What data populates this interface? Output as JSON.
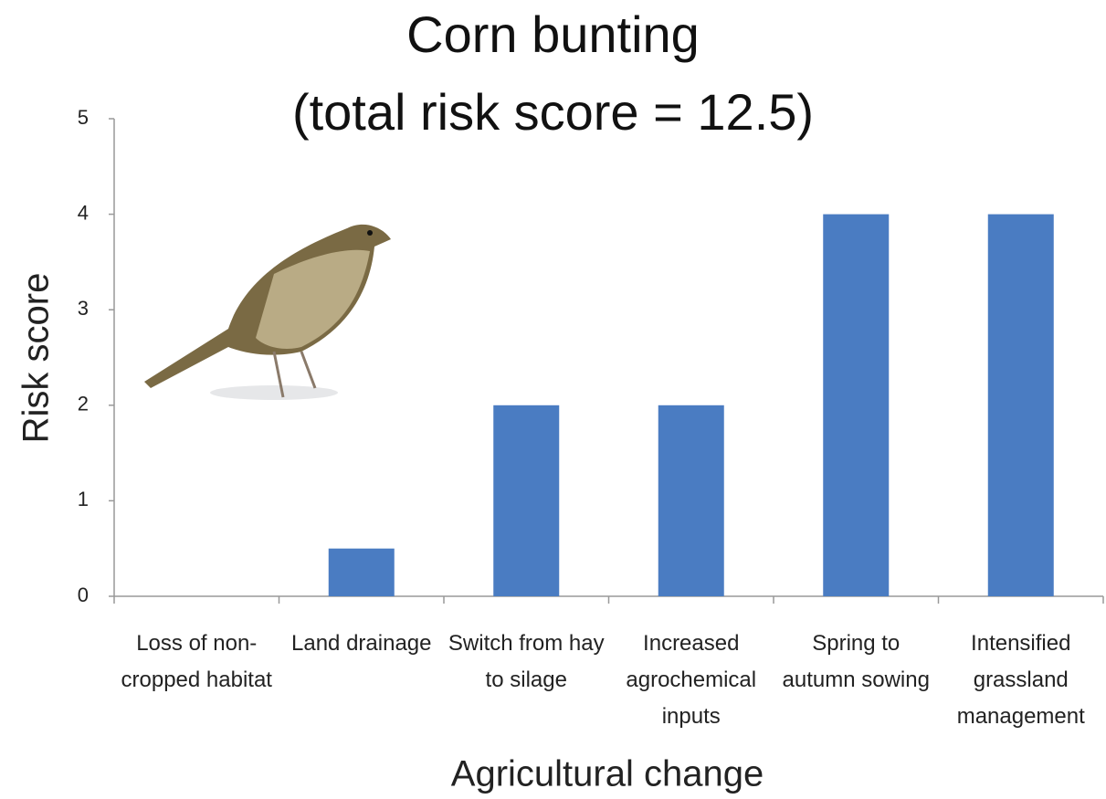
{
  "chart_data": {
    "type": "bar",
    "title": "Corn bunting",
    "subtitle": "(total risk score = 12.5)",
    "x_label": "Agricultural change",
    "y_label": "Risk score",
    "categories": [
      "Loss of non-cropped habitat",
      "Land drainage",
      "Switch from hay to silage",
      "Increased agrochemical inputs",
      "Spring to autumn sowing",
      "Intensified grassland management"
    ],
    "values": [
      0,
      0.5,
      2,
      2,
      4,
      4
    ],
    "color": "#4a7cc2",
    "ylim": [
      0,
      5
    ],
    "yticks": [
      0,
      1,
      2,
      3,
      4,
      5
    ],
    "grid": false
  }
}
